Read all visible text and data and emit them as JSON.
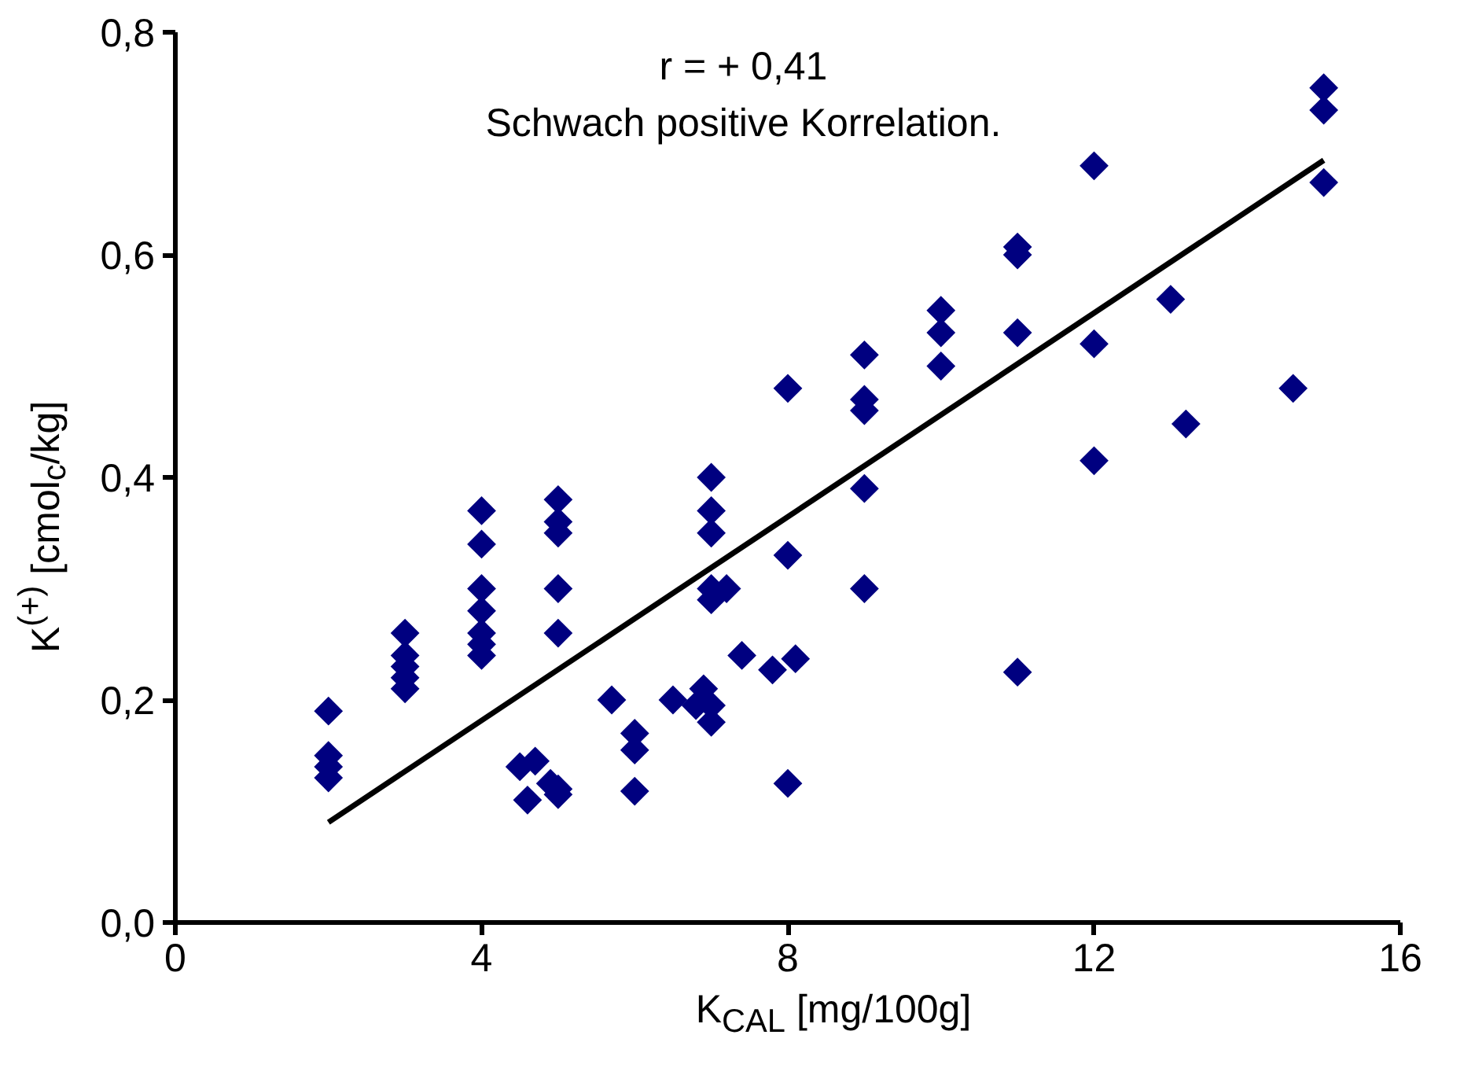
{
  "chart_data": {
    "type": "scatter",
    "xlabel": "K$_{CAL}$ [mg/100g]",
    "ylabel": "K$^{(+)}$ [cmol$_{c}$/kg]",
    "annotations": [
      "r = + 0,41",
      "Schwach positive Korrelation."
    ],
    "xlim": [
      0,
      16
    ],
    "xticks": [
      0,
      4,
      8,
      12,
      16
    ],
    "ylim": [
      0,
      0.8
    ],
    "yticks": [
      {
        "value": 0,
        "label": "0,0"
      },
      {
        "value": 0.2,
        "label": "0,2"
      },
      {
        "value": 0.4,
        "label": "0,4"
      },
      {
        "value": 0.6,
        "label": "0,6"
      },
      {
        "value": 0.8,
        "label": "0,8"
      }
    ],
    "grid": false,
    "marker": "diamond",
    "series": [
      {
        "color": "#000080",
        "x": [
          2,
          2,
          2,
          2,
          3,
          3,
          3,
          3,
          3,
          4,
          4,
          4,
          4,
          4,
          4,
          4,
          4.5,
          4.7,
          4.6,
          4.9,
          5,
          5,
          5,
          5,
          5,
          5,
          5,
          5.7,
          6,
          6,
          6,
          6.5,
          6.8,
          6.9,
          7,
          7,
          7,
          7,
          7,
          7,
          7,
          7.2,
          7.4,
          7.8,
          8,
          8,
          8,
          8.1,
          9,
          9,
          9,
          9,
          9,
          10,
          10,
          10,
          11,
          11,
          11,
          11,
          12,
          12,
          12,
          13,
          13.2,
          14.6,
          15,
          15,
          15
        ],
        "values": [
          0.19,
          0.15,
          0.14,
          0.13,
          0.26,
          0.24,
          0.23,
          0.22,
          0.21,
          0.37,
          0.34,
          0.3,
          0.28,
          0.26,
          0.25,
          0.24,
          0.14,
          0.145,
          0.11,
          0.125,
          0.12,
          0.115,
          0.38,
          0.36,
          0.35,
          0.3,
          0.26,
          0.2,
          0.17,
          0.155,
          0.118,
          0.2,
          0.195,
          0.21,
          0.195,
          0.18,
          0.4,
          0.37,
          0.35,
          0.3,
          0.29,
          0.3,
          0.24,
          0.227,
          0.48,
          0.33,
          0.125,
          0.237,
          0.51,
          0.47,
          0.46,
          0.39,
          0.3,
          0.55,
          0.53,
          0.5,
          0.607,
          0.6,
          0.53,
          0.225,
          0.68,
          0.52,
          0.415,
          0.56,
          0.448,
          0.48,
          0.75,
          0.73,
          0.665
        ]
      },
      {
        "type": "line",
        "marker": "none",
        "color": "#000000",
        "x": [
          2,
          15
        ],
        "values": [
          0.09,
          0.685
        ]
      }
    ]
  }
}
